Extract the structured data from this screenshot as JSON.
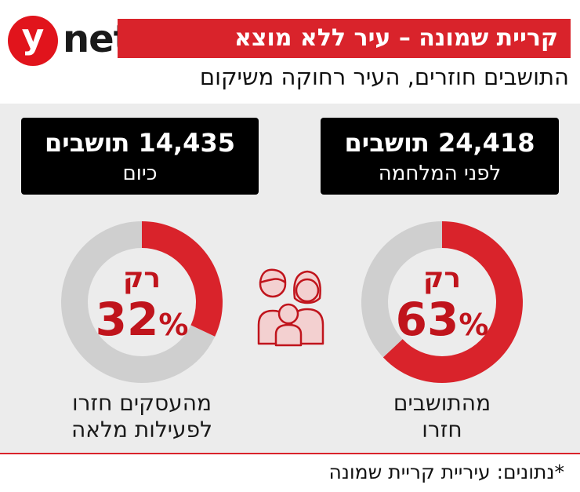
{
  "logo": {
    "mark": "y",
    "text": "net"
  },
  "title": "קריית שמונה – עיר ללא מוצא",
  "subtitle": "התושבים חוזרים, העיר רחוקה משיקום",
  "stats": {
    "before": {
      "number": "24,418 תושבים",
      "label": "לפני המלחמה"
    },
    "today": {
      "number": "14,435 תושבים",
      "label": "כיום"
    }
  },
  "chart_data": [
    {
      "type": "pie",
      "subtype": "donut",
      "label_top": "רק",
      "value_label": "63",
      "unit": "%",
      "caption_line1": "מהתושבים",
      "caption_line2": "חזרו",
      "values": [
        63,
        37
      ],
      "colors": [
        "#d9232b",
        "#cfcfcf"
      ]
    },
    {
      "type": "pie",
      "subtype": "donut",
      "label_top": "רק",
      "value_label": "32",
      "unit": "%",
      "caption_line1": "מהעסקים חזרו",
      "caption_line2": "לפעילות מלאה",
      "values": [
        32,
        68
      ],
      "colors": [
        "#d9232b",
        "#cfcfcf"
      ]
    }
  ],
  "icons": {
    "family": "family-icon"
  },
  "source": "*נתונים: עיריית קריית שמונה",
  "colors": {
    "accent": "#d9232b",
    "ring_bg": "#cfcfcf",
    "panel_bg": "#ececec"
  }
}
